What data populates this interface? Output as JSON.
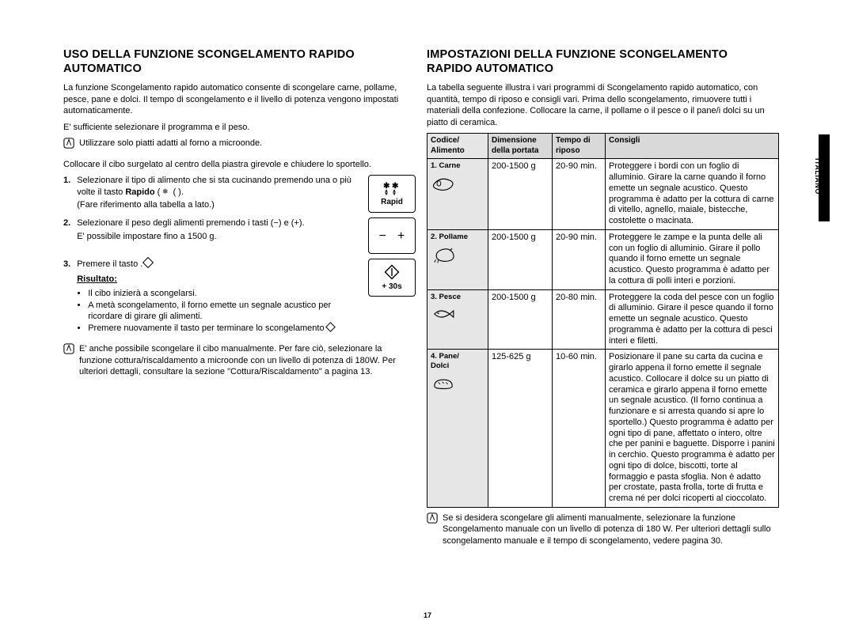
{
  "page_number": "17",
  "side_tab": "ITALIANO",
  "left": {
    "heading_l1": "USO DELLA FUNZIONE SCONGELAMENTO RAPIDO",
    "heading_l2": "AUTOMATICO",
    "intro1": "La funzione Scongelamento rapido automatico consente di scongelare carne, pollame, pesce, pane e dolci. Il tempo di scongelamento e il livello di potenza vengono impostati automaticamente.",
    "intro2": "E' sufficiente selezionare il programma e il peso.",
    "note1": "Utilizzare solo piatti adatti al forno a microonde.",
    "pre_steps": "Collocare il cibo surgelato al centro della piastra girevole e chiudere lo sportello.",
    "step1a": "Selezionare il tipo di alimento che si sta cucinando premendo una o più volte il tasto ",
    "step1b_bold": "Rapido",
    "step1c": " (  ).",
    "step1d": "(Fare riferimento alla tabella a lato.)",
    "step2a": "Selezionare il peso degli alimenti premendo i tasti (−) e (+).",
    "step2b": "E' possibile impostare fino a 1500 g.",
    "step3": "Premere il tasto   .",
    "result_label": "Risultato:",
    "bul1": "Il cibo inizierà a scongelarsi.",
    "bul2": "A metà scongelamento, il forno emette un segnale acustico per ricordare di girare gli alimenti.",
    "bul3": "Premere nuovamente il tasto    per terminare lo scongelamento",
    "note2": "E' anche possibile scongelare il cibo manualmente. Per fare ciò, selezionare la funzione cottura/riscaldamento a microonde con un livello di potenza di 180W. Per ulteriori dettagli, consultare la sezione \"Cottura/Riscaldamento\" a pagina 13.",
    "btn_rapid_label": "Rapid",
    "btn_minus": "−",
    "btn_plus": "+",
    "btn_30s": "+ 30s"
  },
  "right": {
    "heading_l1": "IMPOSTAZIONI DELLA FUNZIONE SCONGELAMENTO",
    "heading_l2": "RAPIDO AUTOMATICO",
    "intro": "La tabella seguente illustra i vari programmi di Scongelamento rapido automatico, con quantità, tempo di riposo e consigli vari. Prima dello scongelamento, rimuovere tutti i materiali della confezione. Collocare la carne, il pollame o il pesce o il pane/i dolci su un piatto di ceramica.",
    "th_code1": "Codice/",
    "th_code2": "Alimento",
    "th_dim1": "Dimensione",
    "th_dim2": "della portata",
    "th_rest1": "Tempo di",
    "th_rest2": "riposo",
    "th_tip": "Consigli",
    "rows": [
      {
        "code": "1. Carne",
        "dim": "200-1500 g",
        "rest": "20-90 min.",
        "tip": "Proteggere i bordi con un foglio di alluminio. Girare la carne quando il forno emette un segnale acustico. Questo programma è adatto per la cottura di carne di vitello, agnello, maiale, bistecche, costolette o macinata."
      },
      {
        "code": "2. Pollame",
        "dim": "200-1500 g",
        "rest": "20-90 min.",
        "tip": "Proteggere le zampe e la punta delle ali con un foglio di alluminio. Girare il pollo quando il forno emette un segnale acustico. Questo programma è adatto per la cottura di polli interi e porzioni."
      },
      {
        "code": "3. Pesce",
        "dim": "200-1500 g",
        "rest": "20-80 min.",
        "tip": "Proteggere la coda del pesce con un foglio di alluminio. Girare il pesce quando il forno emette un segnale acustico. Questo programma è adatto per la cottura di pesci interi e filetti."
      },
      {
        "code": "4. Pane/\nDolci",
        "dim": "125-625 g",
        "rest": "10-60 min.",
        "tip": "Posizionare il pane su carta da cucina e girarlo appena il forno emette il segnale acustico. Collocare il dolce su un piatto di ceramica e girarlo appena il forno emette un segnale acustico. (Il forno continua a funzionare e si arresta quando si apre lo sportello.) Questo programma è adatto per ogni tipo di pane, affettato o intero, oltre che per panini e baguette. Disporre i panini in cerchio. Questo programma è adatto per ogni tipo di dolce, biscotti, torte al formaggio e pasta sfoglia. Non è adatto per crostate, pasta frolla, torte di frutta e crema né per dolci ricoperti al cioccolato."
      }
    ],
    "note": "Se si desidera scongelare gli alimenti manualmente, selezionare la funzione Scongelamento manuale con un livello di potenza di 180 W. Per ulteriori dettagli sullo scongelamento manuale e il tempo di scongelamento, vedere pagina 30."
  }
}
